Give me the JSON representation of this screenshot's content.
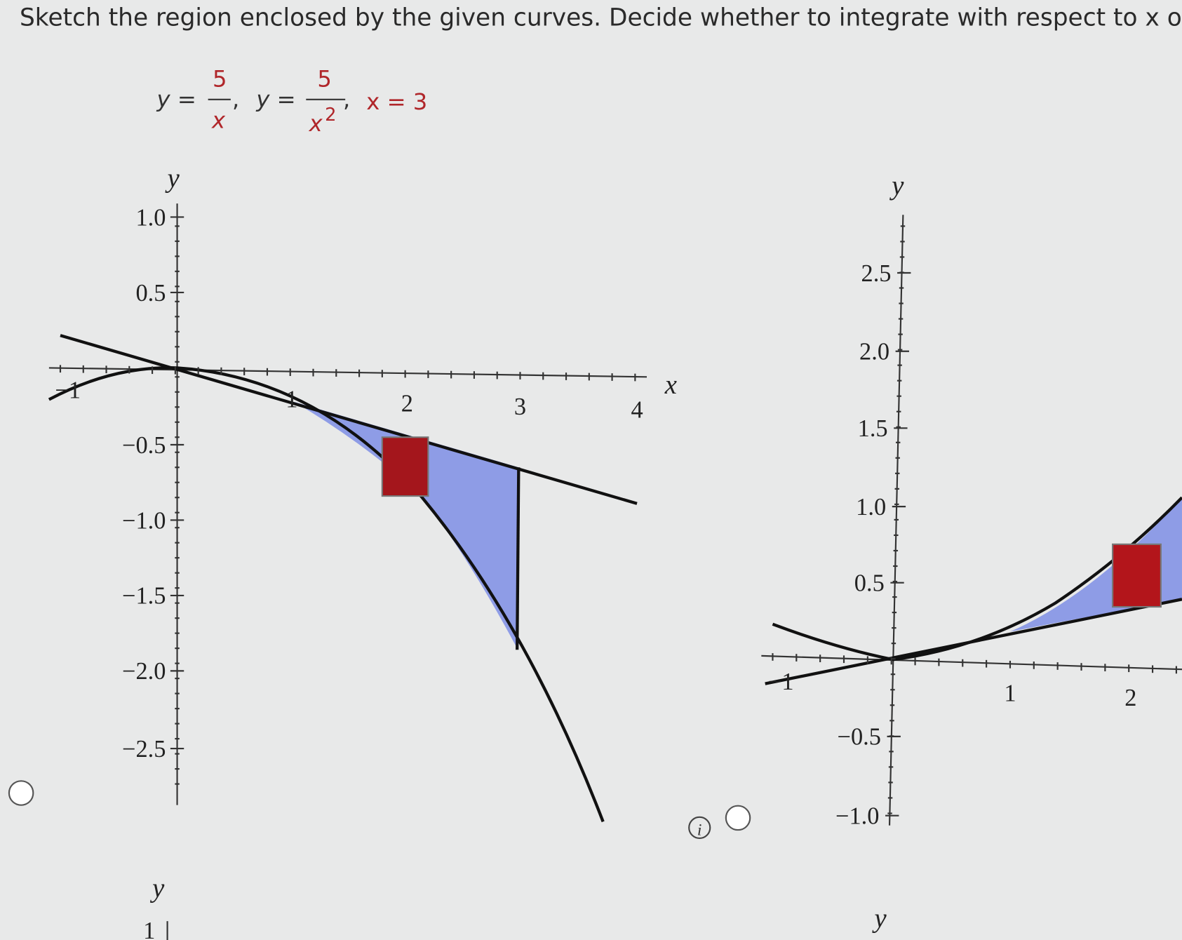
{
  "prompt": "Sketch the region enclosed by the given curves. Decide whether to integrate with respect to x or",
  "equations": {
    "first": {
      "left": "y =",
      "numerator": "5",
      "denominator": "x"
    },
    "second": {
      "left": "y =",
      "numerator": "5",
      "denominator": "x",
      "exponent": "2"
    },
    "third": "x = 3",
    "separator": ","
  },
  "graph_a": {
    "y_label": "y",
    "x_label": "x",
    "y_ticks": [
      "1.0",
      "0.5",
      "−0.5",
      "−1.0",
      "−1.5",
      "−2.0",
      "−2.5"
    ],
    "x_ticks": [
      "−1",
      "1",
      "2",
      "3",
      "4"
    ]
  },
  "graph_b": {
    "y_label": "y",
    "y_ticks": [
      "2.5",
      "2.0",
      "1.5",
      "1.0",
      "0.5",
      "−0.5",
      "−1.0"
    ],
    "x_ticks": [
      "−1",
      "1",
      "2"
    ]
  },
  "info_icon": "i",
  "graph_c": {
    "y_label": "y",
    "y_tick": "1"
  },
  "graph_d": {
    "y_label": "y"
  }
}
